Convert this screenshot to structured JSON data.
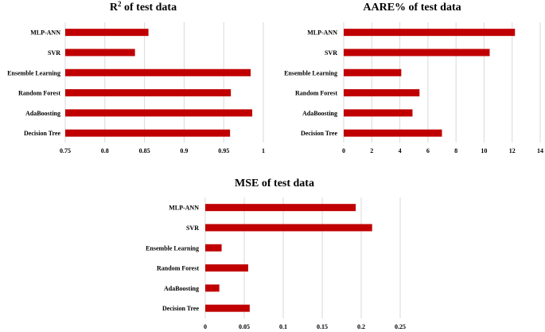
{
  "chart_data": [
    {
      "id": "r2",
      "type": "bar",
      "orientation": "horizontal",
      "title": "R",
      "title_sup": "2",
      "title_rest": " of test data",
      "categories": [
        "MLP-ANN",
        "SVR",
        "Ensemble Learning",
        "Random Forest",
        "AdaBoosting",
        "Decision Tree"
      ],
      "values": [
        0.855,
        0.838,
        0.984,
        0.959,
        0.986,
        0.958
      ],
      "xlim": [
        0.75,
        1
      ],
      "ticks": [
        0.75,
        0.8,
        0.85,
        0.9,
        0.95,
        1
      ],
      "tick_labels": [
        "0.75",
        "0.8",
        "0.85",
        "0.9",
        "0.95",
        "1"
      ],
      "bar_color": "#c00000"
    },
    {
      "id": "aare",
      "type": "bar",
      "orientation": "horizontal",
      "title": "AARE% of test data",
      "categories": [
        "MLP-ANN",
        "SVR",
        "Ensemble Learning",
        "Random Forest",
        "AdaBoosting",
        "Decision Tree"
      ],
      "values": [
        12.2,
        10.4,
        4.1,
        5.4,
        4.9,
        7.0
      ],
      "xlim": [
        0,
        14
      ],
      "ticks": [
        0,
        2,
        4,
        6,
        8,
        10,
        12,
        14
      ],
      "tick_labels": [
        "0",
        "2",
        "4",
        "6",
        "8",
        "10",
        "12",
        "14"
      ],
      "bar_color": "#c00000"
    },
    {
      "id": "mse",
      "type": "bar",
      "orientation": "horizontal",
      "title": "MSE of test data",
      "categories": [
        "MLP-ANN",
        "SVR",
        "Ensemble Learning",
        "Random Forest",
        "AdaBoosting",
        "Decision Tree"
      ],
      "values": [
        0.193,
        0.214,
        0.021,
        0.055,
        0.018,
        0.057
      ],
      "xlim": [
        0,
        0.25
      ],
      "ticks": [
        0,
        0.05,
        0.1,
        0.15,
        0.2,
        0.25
      ],
      "tick_labels": [
        "0",
        "0.05",
        "0.1",
        "0.15",
        "0.2",
        "0.25"
      ],
      "bar_color": "#c00000"
    }
  ]
}
